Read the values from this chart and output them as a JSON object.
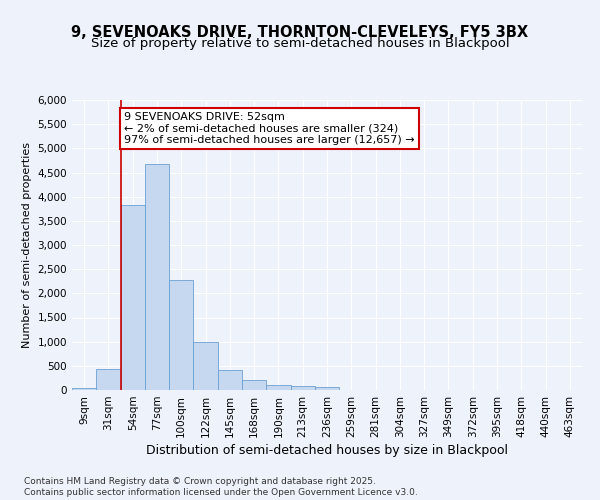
{
  "title": "9, SEVENOAKS DRIVE, THORNTON-CLEVELEYS, FY5 3BX",
  "subtitle": "Size of property relative to semi-detached houses in Blackpool",
  "xlabel": "Distribution of semi-detached houses by size in Blackpool",
  "ylabel": "Number of semi-detached properties",
  "categories": [
    "9sqm",
    "31sqm",
    "54sqm",
    "77sqm",
    "100sqm",
    "122sqm",
    "145sqm",
    "168sqm",
    "190sqm",
    "213sqm",
    "236sqm",
    "259sqm",
    "281sqm",
    "304sqm",
    "327sqm",
    "349sqm",
    "372sqm",
    "395sqm",
    "418sqm",
    "440sqm",
    "463sqm"
  ],
  "bar_heights": [
    50,
    430,
    3820,
    4680,
    2280,
    1000,
    410,
    200,
    95,
    75,
    65,
    0,
    0,
    0,
    0,
    0,
    0,
    0,
    0,
    0,
    0
  ],
  "bar_color": "#c5d8f0",
  "bar_edge_color": "#6b9fd4",
  "annotation_text_lines": [
    "9 SEVENOAKS DRIVE: 52sqm",
    "← 2% of semi-detached houses are smaller (324)",
    "97% of semi-detached houses are larger (12,657) →"
  ],
  "annotation_box_color": "#ffffff",
  "annotation_border_color": "#cc0000",
  "red_line_color": "#cc0000",
  "footer_text": "Contains HM Land Registry data © Crown copyright and database right 2025.\nContains public sector information licensed under the Open Government Licence v3.0.",
  "background_color": "#eef2fb",
  "plot_bg_color": "#eef2fb",
  "ylim": [
    0,
    6000
  ],
  "yticks": [
    0,
    500,
    1000,
    1500,
    2000,
    2500,
    3000,
    3500,
    4000,
    4500,
    5000,
    5500,
    6000
  ],
  "title_fontsize": 10.5,
  "subtitle_fontsize": 9.5,
  "xlabel_fontsize": 9,
  "ylabel_fontsize": 8,
  "tick_fontsize": 7.5,
  "footer_fontsize": 6.5,
  "annot_fontsize": 8
}
